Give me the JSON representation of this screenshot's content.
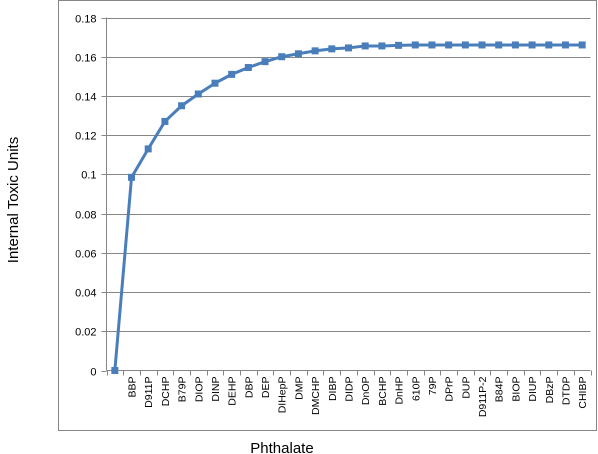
{
  "chart_data": {
    "type": "line",
    "title": "",
    "xlabel": "Phthalate",
    "ylabel": "Internal Toxic Units",
    "ylim": [
      0,
      0.18
    ],
    "yticks": [
      "0",
      "0.02",
      "0.04",
      "0.06",
      "0.08",
      "0.1",
      "0.12",
      "0.14",
      "0.16",
      "0.18"
    ],
    "grid": "horizontal",
    "legend": "none",
    "categories": [
      "",
      "BBP",
      "D911P",
      "DCHP",
      "B79P",
      "DIOP",
      "DINP",
      "DEHP",
      "DBP",
      "DEP",
      "DIHepP",
      "DMP",
      "DMCHP",
      "DIBP",
      "DIDP",
      "DnOP",
      "BCHP",
      "DnHP",
      "610P",
      "79P",
      "DPrP",
      "DUP",
      "D911P-2",
      "B84P",
      "BIOP",
      "DIUP",
      "DBzP",
      "DTDP",
      "CHIBP"
    ],
    "series": [
      {
        "values": [
          0,
          0.0985,
          0.113,
          0.127,
          0.135,
          0.141,
          0.1465,
          0.151,
          0.1545,
          0.1575,
          0.16,
          0.1615,
          0.163,
          0.164,
          0.1645,
          0.1655,
          0.1655,
          0.1658,
          0.166,
          0.166,
          0.166,
          0.166,
          0.166,
          0.166,
          0.166,
          0.166,
          0.166,
          0.166,
          0.166
        ],
        "color": "#4A7EBB",
        "marker": "square"
      }
    ],
    "colors": {
      "line": "#4A7EBB",
      "grid": "#868686",
      "axis": "#868686",
      "frame": "#868686"
    }
  }
}
